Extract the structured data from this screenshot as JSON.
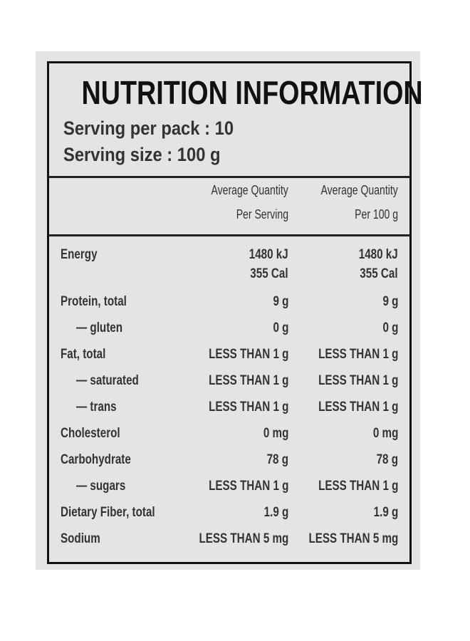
{
  "header": {
    "title": "NUTRITION INFORMATION",
    "servings": [
      "Serving per pack : 10",
      "Serving size : 100 g"
    ]
  },
  "table": {
    "columns": [
      [
        "Average Quantity",
        "Per Serving"
      ],
      [
        "Average Quantity",
        "Per 100 g"
      ]
    ],
    "rows": [
      [
        "Energy",
        [
          "1480 kJ",
          "355 Cal"
        ],
        [
          "1480 kJ",
          "355 Cal"
        ]
      ],
      [
        "Protein, total",
        "9 g",
        "9 g"
      ],
      [
        "— gluten",
        "0 g",
        "0 g"
      ],
      [
        "Fat, total",
        "LESS THAN 1 g",
        "LESS THAN 1 g"
      ],
      [
        "— saturated",
        "LESS THAN 1 g",
        "LESS THAN 1 g"
      ],
      [
        "— trans",
        "LESS THAN 1 g",
        "LESS THAN 1 g"
      ],
      [
        "Cholesterol",
        "0 mg",
        "0 mg"
      ],
      [
        "Carbohydrate",
        "78 g",
        "78 g"
      ],
      [
        "— sugars",
        "LESS THAN 1 g",
        "LESS THAN 1 g"
      ],
      [
        "Dietary Fiber, total",
        "1.9 g",
        "1.9 g"
      ],
      [
        "Sodium",
        "LESS THAN 5 mg",
        "LESS THAN 5 mg"
      ]
    ]
  }
}
